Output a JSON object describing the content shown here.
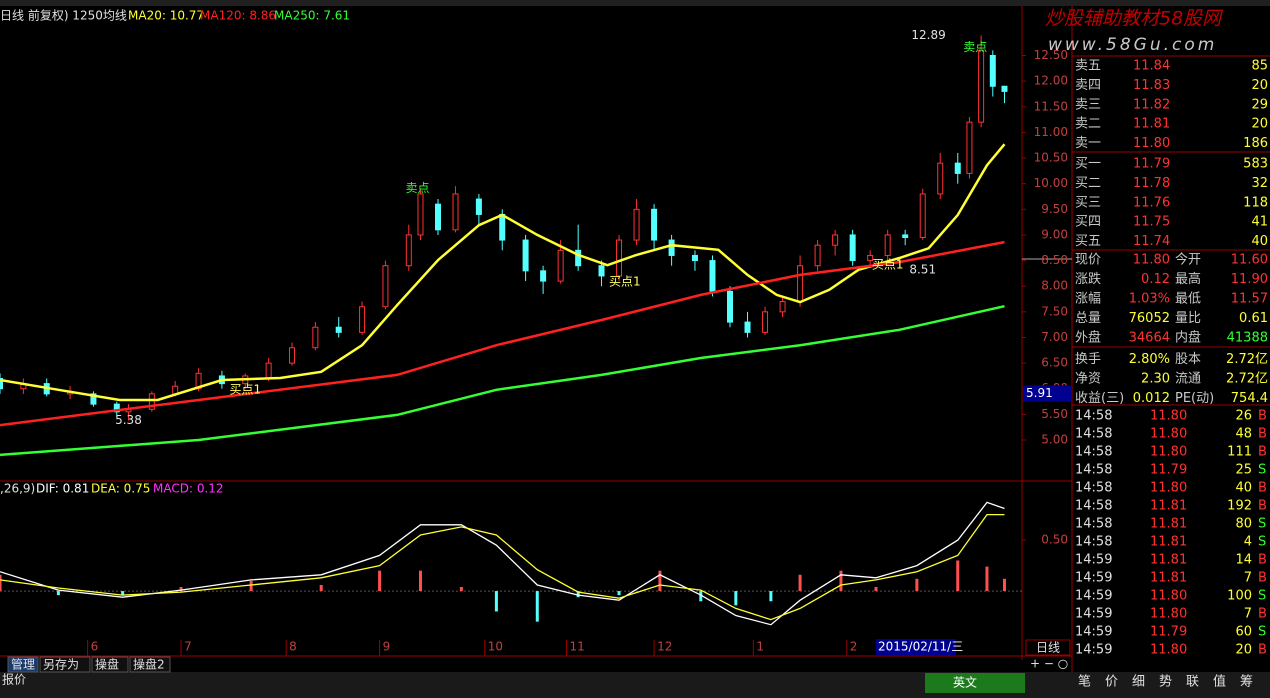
{
  "header": {
    "title": "日线 前复权) 1250均线"
  },
  "watermark": {
    "line1": "炒股辅助教材58股网",
    "line2": "www.58Gu.com"
  },
  "chart_data": [
    {
      "type": "candlestick",
      "xlim": [
        0,
        175
      ],
      "ylim": [
        4.22,
        13.29
      ],
      "yticks": [
        {
          "value": 5,
          "label": "5.00"
        },
        {
          "value": 5.5,
          "label": "5.50"
        },
        {
          "value": 6,
          "label": "6.00"
        },
        {
          "value": 6.5,
          "label": "6.50"
        },
        {
          "value": 7,
          "label": "7.00"
        },
        {
          "value": 7.5,
          "label": "7.50"
        },
        {
          "value": 8,
          "label": "8.00"
        },
        {
          "value": 8.5,
          "label": "8.50"
        },
        {
          "value": 9,
          "label": "9.00"
        },
        {
          "value": 9.5,
          "label": "9.50"
        },
        {
          "value": 10,
          "label": "10.00"
        },
        {
          "value": 10.5,
          "label": "10.50"
        },
        {
          "value": 11,
          "label": "11.00"
        },
        {
          "value": 11.5,
          "label": "11.50"
        },
        {
          "value": 12,
          "label": "12.00"
        },
        {
          "value": 12.5,
          "label": "12.50"
        }
      ],
      "xticks": [
        {
          "value": 15,
          "label": "6"
        },
        {
          "value": 31,
          "label": "7"
        },
        {
          "value": 49,
          "label": "8"
        },
        {
          "value": 65,
          "label": "9"
        },
        {
          "value": 83,
          "label": "10"
        },
        {
          "value": 97,
          "label": "11"
        },
        {
          "value": 112,
          "label": "12"
        },
        {
          "value": 129,
          "label": "1"
        },
        {
          "value": 145,
          "label": "2"
        }
      ],
      "cursor_date": {
        "value": 150,
        "label": "2015/02/11/三"
      },
      "cursor_price": {
        "value": 5.91,
        "label": "5.91"
      },
      "up_color": "#ff3232",
      "down_color": "#54ffff",
      "candles": [
        [
          0,
          6.2,
          6.0,
          6.3,
          5.9
        ],
        [
          4,
          6.0,
          6.1,
          6.2,
          5.9
        ],
        [
          8,
          6.1,
          5.9,
          6.2,
          5.85
        ],
        [
          12,
          5.9,
          5.95,
          6.05,
          5.8
        ],
        [
          16,
          5.9,
          5.7,
          5.95,
          5.65
        ],
        [
          20,
          5.7,
          5.55,
          5.75,
          5.45
        ],
        [
          22,
          5.55,
          5.6,
          5.7,
          5.38
        ],
        [
          26,
          5.6,
          5.9,
          5.95,
          5.55
        ],
        [
          30,
          5.9,
          6.05,
          6.15,
          5.85
        ],
        [
          34,
          6.0,
          6.3,
          6.4,
          5.95
        ],
        [
          38,
          6.25,
          6.1,
          6.35,
          6.0
        ],
        [
          42,
          6.1,
          6.25,
          6.3,
          6.0
        ],
        [
          46,
          6.2,
          6.5,
          6.6,
          6.15
        ],
        [
          50,
          6.5,
          6.8,
          6.9,
          6.45
        ],
        [
          54,
          6.8,
          7.2,
          7.3,
          6.75
        ],
        [
          58,
          7.2,
          7.1,
          7.4,
          7.0
        ],
        [
          62,
          7.1,
          7.6,
          7.7,
          7.05
        ],
        [
          66,
          7.6,
          8.4,
          8.5,
          7.55
        ],
        [
          70,
          8.4,
          9.0,
          9.2,
          8.3
        ],
        [
          72,
          9.0,
          9.8,
          9.9,
          8.9
        ],
        [
          75,
          9.6,
          9.1,
          9.7,
          9.0
        ],
        [
          78,
          9.1,
          9.8,
          9.95,
          9.05
        ],
        [
          82,
          9.7,
          9.4,
          9.8,
          9.2
        ],
        [
          86,
          9.4,
          8.9,
          9.5,
          8.7
        ],
        [
          90,
          8.9,
          8.3,
          9.0,
          8.1
        ],
        [
          93,
          8.3,
          8.1,
          8.4,
          7.85
        ],
        [
          96,
          8.1,
          8.7,
          8.9,
          8.05
        ],
        [
          99,
          8.7,
          8.4,
          9.2,
          8.3
        ],
        [
          103,
          8.4,
          8.2,
          8.5,
          8.0
        ],
        [
          106,
          8.2,
          8.9,
          9.0,
          8.1
        ],
        [
          109,
          8.9,
          9.5,
          9.7,
          8.8
        ],
        [
          112,
          9.5,
          8.9,
          9.6,
          8.7
        ],
        [
          115,
          8.9,
          8.6,
          9.0,
          8.4
        ],
        [
          119,
          8.6,
          8.5,
          8.7,
          8.3
        ],
        [
          122,
          8.5,
          7.9,
          8.6,
          7.8
        ],
        [
          125,
          7.9,
          7.3,
          8.0,
          7.2
        ],
        [
          128,
          7.3,
          7.1,
          7.5,
          7.0
        ],
        [
          131,
          7.1,
          7.5,
          7.6,
          7.05
        ],
        [
          134,
          7.5,
          7.7,
          7.8,
          7.4
        ],
        [
          137,
          7.7,
          8.4,
          8.6,
          7.6
        ],
        [
          140,
          8.4,
          8.8,
          8.9,
          8.3
        ],
        [
          143,
          8.8,
          9.0,
          9.1,
          8.6
        ],
        [
          146,
          9.0,
          8.5,
          9.1,
          8.4
        ],
        [
          149,
          8.5,
          8.6,
          8.7,
          8.4
        ],
        [
          152,
          8.6,
          9.0,
          9.1,
          8.5
        ],
        [
          155,
          9.0,
          8.95,
          9.1,
          8.8
        ],
        [
          158,
          8.95,
          9.8,
          9.9,
          8.9
        ],
        [
          161,
          9.8,
          10.4,
          10.6,
          9.7
        ],
        [
          164,
          10.4,
          10.2,
          10.6,
          10.0
        ],
        [
          166,
          10.2,
          11.2,
          11.3,
          10.1
        ],
        [
          168,
          11.2,
          12.6,
          12.89,
          11.1
        ],
        [
          170,
          12.5,
          11.9,
          12.6,
          11.7
        ],
        [
          172,
          11.9,
          11.8,
          11.9,
          11.57
        ]
      ],
      "series": [
        {
          "name": "MA20: 10.77",
          "color": "#ffff33",
          "x": [
            0,
            10,
            20.5,
            27,
            38,
            48,
            55,
            62,
            68,
            75,
            82,
            86,
            92,
            99,
            104,
            109,
            115,
            123,
            128,
            133,
            137,
            142,
            147,
            154,
            159,
            164,
            169,
            172
          ],
          "values": [
            6.17,
            5.98,
            5.78,
            5.78,
            6.17,
            6.21,
            6.33,
            6.85,
            7.63,
            8.51,
            9.19,
            9.39,
            9.0,
            8.61,
            8.41,
            8.61,
            8.8,
            8.71,
            8.22,
            7.83,
            7.69,
            7.93,
            8.32,
            8.55,
            8.74,
            9.39,
            10.36,
            10.77
          ]
        },
        {
          "name": "MA120: 8.86",
          "color": "#ff2020",
          "x": [
            0,
            34,
            68,
            85,
            103,
            120,
            137,
            154,
            172
          ],
          "values": [
            5.29,
            5.78,
            6.27,
            6.85,
            7.34,
            7.83,
            8.22,
            8.47,
            8.86
          ]
        },
        {
          "name": "MA250: 7.61",
          "color": "#33ff33",
          "x": [
            0,
            34,
            68,
            85,
            103,
            120,
            137,
            154,
            172
          ],
          "values": [
            4.71,
            5.0,
            5.49,
            5.98,
            6.27,
            6.6,
            6.85,
            7.15,
            7.61
          ]
        }
      ],
      "annotations": [
        {
          "text": "12.89",
          "x": 159,
          "y": 12.89,
          "color": "#e0e0e0"
        },
        {
          "text": "卖点",
          "x": 167,
          "y": 12.66,
          "color": "#33ff33"
        },
        {
          "text": "卖点",
          "x": 71.5,
          "y": 9.91,
          "color": "#33ff33"
        },
        {
          "text": "买点1",
          "x": 42,
          "y": 5.98,
          "color": "#ffff66"
        },
        {
          "text": "买点1",
          "x": 107,
          "y": 8.08,
          "color": "#ffff66"
        },
        {
          "text": "买点1",
          "x": 152,
          "y": 8.41,
          "color": "#ffff66"
        },
        {
          "text": "5.38",
          "x": 22,
          "y": 5.38,
          "color": "#e0e0e0"
        },
        {
          "text": "8.51",
          "x": 158,
          "y": 8.32,
          "color": "#e0e0e0"
        }
      ]
    },
    {
      "type": "macd",
      "title": ",26,9)",
      "xlim": [
        0,
        175
      ],
      "ylim": [
        -0.48,
        1.07
      ],
      "yticks": [
        {
          "value": 0.5,
          "label": "0.50"
        }
      ],
      "x": [
        0,
        10,
        21,
        31,
        43,
        55,
        65,
        72,
        79,
        85,
        92,
        99,
        106,
        113,
        120,
        126,
        132,
        137,
        144,
        150,
        157,
        164,
        169,
        172
      ],
      "series": [
        {
          "name": "DIF: 0.81",
          "color": "#ffffff",
          "values": [
            0.19,
            0.01,
            -0.06,
            0.01,
            0.11,
            0.16,
            0.35,
            0.65,
            0.65,
            0.45,
            0.06,
            -0.04,
            -0.09,
            0.16,
            -0.04,
            -0.24,
            -0.33,
            -0.09,
            0.16,
            0.13,
            0.25,
            0.5,
            0.87,
            0.81
          ]
        },
        {
          "name": "DEA: 0.75",
          "color": "#ffff33",
          "values": [
            0.11,
            0.03,
            -0.04,
            -0.01,
            0.06,
            0.13,
            0.25,
            0.55,
            0.63,
            0.55,
            0.21,
            -0.01,
            -0.07,
            0.06,
            0.01,
            -0.17,
            -0.28,
            -0.17,
            0.06,
            0.11,
            0.19,
            0.35,
            0.75,
            0.75
          ]
        }
      ],
      "histogram": {
        "name": "MACD: 0.12",
        "color": "#ff33ff",
        "up_color": "#ff5050",
        "down_color": "#54ffff",
        "values": [
          0.16,
          -0.04,
          -0.04,
          0.04,
          0.1,
          0.06,
          0.2,
          0.2,
          0.04,
          -0.2,
          -0.3,
          -0.06,
          -0.04,
          0.2,
          -0.1,
          -0.14,
          -0.1,
          0.16,
          0.2,
          0.04,
          0.12,
          0.3,
          0.24,
          0.12
        ]
      }
    }
  ],
  "period": "日线",
  "tabs": [
    "管理",
    "另存为",
    "操盘",
    "操盘2"
  ],
  "status": "报价",
  "ime": "英文",
  "order_book": [
    {
      "label": "卖五",
      "price": "11.84",
      "volume": "85"
    },
    {
      "label": "卖四",
      "price": "11.83",
      "volume": "20"
    },
    {
      "label": "卖三",
      "price": "11.82",
      "volume": "29"
    },
    {
      "label": "卖二",
      "price": "11.81",
      "volume": "20"
    },
    {
      "label": "卖一",
      "price": "11.80",
      "volume": "186"
    },
    {
      "label": "买一",
      "price": "11.79",
      "volume": "583"
    },
    {
      "label": "买二",
      "price": "11.78",
      "volume": "32"
    },
    {
      "label": "买三",
      "price": "11.76",
      "volume": "118"
    },
    {
      "label": "买四",
      "price": "11.75",
      "volume": "41"
    },
    {
      "label": "买五",
      "price": "11.74",
      "volume": "40"
    }
  ],
  "stats": [
    [
      {
        "label": "现价",
        "value": "11.80",
        "color": "#ff3232"
      },
      {
        "label": "今开",
        "value": "11.60",
        "color": "#ff3232"
      }
    ],
    [
      {
        "label": "涨跌",
        "value": "0.12",
        "color": "#ff3232"
      },
      {
        "label": "最高",
        "value": "11.90",
        "color": "#ff3232"
      }
    ],
    [
      {
        "label": "涨幅",
        "value": "1.03%",
        "color": "#ff3232"
      },
      {
        "label": "最低",
        "value": "11.57",
        "color": "#ff3232"
      }
    ],
    [
      {
        "label": "总量",
        "value": "76052",
        "color": "#ffff33"
      },
      {
        "label": "量比",
        "value": "0.61",
        "color": "#ffff33"
      }
    ],
    [
      {
        "label": "外盘",
        "value": "34664",
        "color": "#ff3232"
      },
      {
        "label": "内盘",
        "value": "41388",
        "color": "#33ff33"
      }
    ],
    [
      {
        "label": "换手",
        "value": "2.80%",
        "color": "#ffff33"
      },
      {
        "label": "股本",
        "value": "2.72亿",
        "color": "#ffff33"
      }
    ],
    [
      {
        "label": "净资",
        "value": "2.30",
        "color": "#ffff33"
      },
      {
        "label": "流通",
        "value": "2.72亿",
        "color": "#ffff33"
      }
    ],
    [
      {
        "label": "收益(三)",
        "value": "0.012",
        "color": "#ffff33"
      },
      {
        "label": "PE(动)",
        "value": "754.4",
        "color": "#ffff33"
      }
    ]
  ],
  "trades": [
    [
      "14:58",
      "11.80",
      "26",
      "B"
    ],
    [
      "14:58",
      "11.80",
      "48",
      "B"
    ],
    [
      "14:58",
      "11.80",
      "111",
      "B"
    ],
    [
      "14:58",
      "11.79",
      "25",
      "S"
    ],
    [
      "14:58",
      "11.80",
      "40",
      "B"
    ],
    [
      "14:58",
      "11.81",
      "192",
      "B"
    ],
    [
      "14:58",
      "11.81",
      "80",
      "S"
    ],
    [
      "14:58",
      "11.81",
      "4",
      "S"
    ],
    [
      "14:59",
      "11.81",
      "14",
      "B"
    ],
    [
      "14:59",
      "11.81",
      "7",
      "B"
    ],
    [
      "14:59",
      "11.80",
      "100",
      "S"
    ],
    [
      "14:59",
      "11.80",
      "7",
      "B"
    ],
    [
      "14:59",
      "11.79",
      "60",
      "S"
    ],
    [
      "14:59",
      "11.80",
      "20",
      "B"
    ]
  ],
  "right_tabs": [
    "笔",
    "价",
    "细",
    "势",
    "联",
    "值",
    "筹"
  ]
}
